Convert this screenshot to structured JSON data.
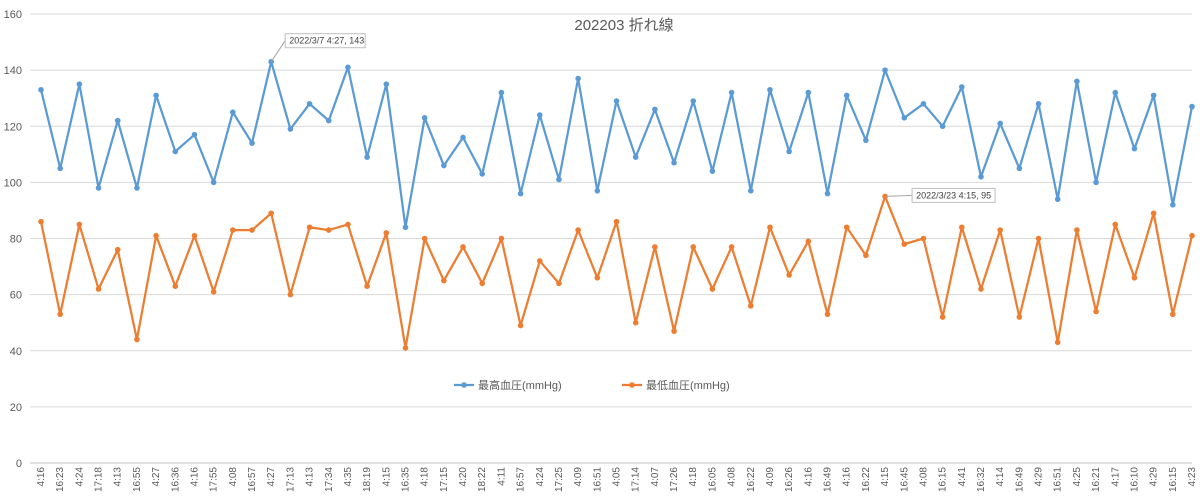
{
  "chart_data": {
    "type": "line",
    "title": "202203 折れ線",
    "xlabel": "",
    "ylabel": "",
    "ylim": [
      0,
      160
    ],
    "yticks": [
      0,
      20,
      40,
      60,
      80,
      100,
      120,
      140,
      160
    ],
    "grid": true,
    "legend": "bottom-center",
    "categories": [
      "4:16",
      "16:23",
      "4:24",
      "17:18",
      "4:13",
      "16:55",
      "4:27",
      "16:36",
      "4:16",
      "17:55",
      "4:08",
      "16:57",
      "4:27",
      "17:13",
      "4:13",
      "17:34",
      "4:35",
      "18:19",
      "4:15",
      "16:35",
      "4:18",
      "17:15",
      "4:20",
      "18:22",
      "4:11",
      "16:57",
      "4:24",
      "17:25",
      "4:09",
      "16:51",
      "4:05",
      "17:14",
      "4:07",
      "17:26",
      "4:18",
      "16:05",
      "4:08",
      "16:22",
      "4:09",
      "16:26",
      "4:16",
      "16:49",
      "4:16",
      "16:22",
      "4:15",
      "16:45",
      "4:08",
      "16:15",
      "4:41",
      "16:32",
      "4:14",
      "16:49",
      "4:29",
      "16:51",
      "4:25",
      "16:21",
      "4:17",
      "16:10",
      "4:29",
      "16:15",
      "4:23"
    ],
    "series": [
      {
        "name": "最高血圧(mmHg)",
        "color": "#5B9BD5",
        "values": [
          133,
          105,
          135,
          98,
          122,
          98,
          131,
          111,
          117,
          100,
          125,
          114,
          143,
          119,
          128,
          122,
          141,
          109,
          135,
          84,
          123,
          106,
          116,
          103,
          132,
          96,
          124,
          101,
          137,
          97,
          129,
          109,
          126,
          107,
          129,
          104,
          132,
          97,
          133,
          111,
          132,
          96,
          131,
          115,
          140,
          123,
          128,
          120,
          134,
          102,
          121,
          105,
          128,
          94,
          136,
          100,
          132,
          112,
          131,
          92,
          127
        ]
      },
      {
        "name": "最低血圧(mmHg)",
        "color": "#ED7D31",
        "values": [
          86,
          53,
          85,
          62,
          76,
          44,
          81,
          63,
          81,
          61,
          83,
          83,
          89,
          60,
          84,
          83,
          85,
          63,
          82,
          41,
          80,
          65,
          77,
          64,
          80,
          49,
          72,
          64,
          83,
          66,
          86,
          50,
          77,
          47,
          77,
          62,
          77,
          56,
          84,
          67,
          79,
          53,
          84,
          74,
          95,
          78,
          80,
          52,
          84,
          62,
          83,
          52,
          80,
          43,
          83,
          54,
          85,
          66,
          89,
          53,
          81
        ]
      }
    ],
    "annotations": [
      {
        "text": "2022/3/7 4:27, 143",
        "series": 0,
        "index": 12
      },
      {
        "text": "2022/3/23 4:15, 95",
        "series": 1,
        "index": 44
      }
    ]
  }
}
